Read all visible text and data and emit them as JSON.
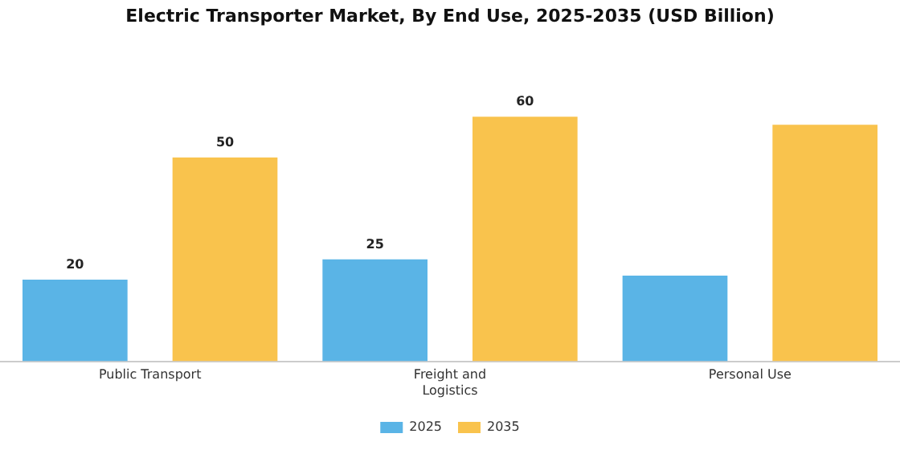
{
  "chart_data": {
    "type": "bar",
    "title": "Electric Transporter Market, By End Use, 2025-2035 (USD Billion)",
    "categories": [
      "Public Transport",
      "Freight and\nLogistics",
      "Personal Use"
    ],
    "series": [
      {
        "name": "2025",
        "color": "#5ab4e6",
        "values": [
          20,
          25,
          21
        ],
        "value_labels": [
          "20",
          "25",
          null
        ]
      },
      {
        "name": "2035",
        "color": "#f9c34d",
        "values": [
          50,
          60,
          58
        ],
        "value_labels": [
          "50",
          "60",
          null
        ]
      }
    ],
    "legend": "bottom",
    "grid": false
  }
}
